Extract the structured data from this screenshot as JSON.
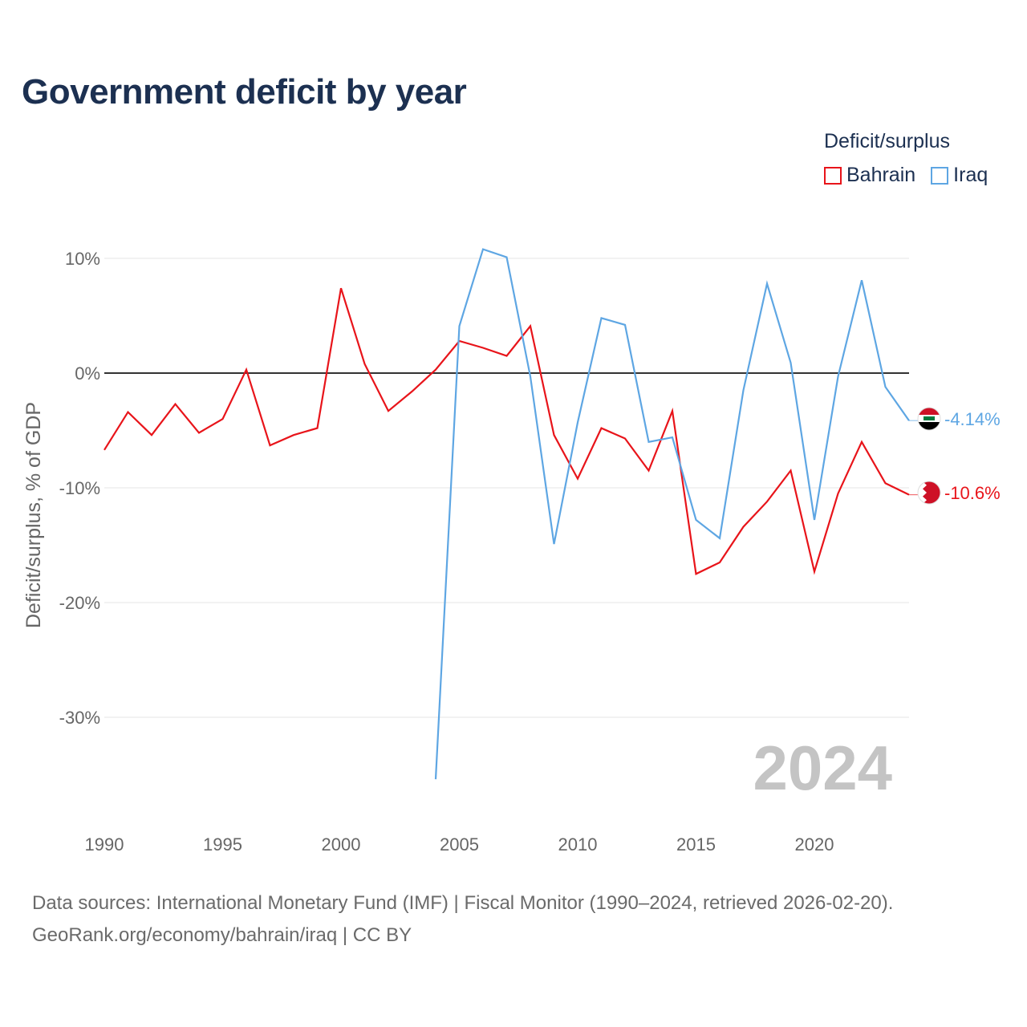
{
  "title": "Government deficit by year",
  "legend": {
    "title": "Deficit/surplus",
    "items": [
      {
        "label": "Bahrain",
        "color": "#e8141a"
      },
      {
        "label": "Iraq",
        "color": "#5ea6e3"
      }
    ]
  },
  "year_watermark": "2024",
  "end_labels": {
    "bahrain": "-10.6%",
    "iraq": "-4.14%"
  },
  "footer": {
    "line1": "Data sources: International Monetary Fund (IMF) | Fiscal Monitor (1990–2024, retrieved 2026-02-20).",
    "line2": "GeoRank.org/economy/bahrain/iraq | CC BY"
  },
  "chart_data": {
    "type": "line",
    "title": "Government deficit by year",
    "xlabel": "",
    "ylabel": "Deficit/surplus, % of GDP",
    "xlim": [
      1990,
      2024
    ],
    "ylim": [
      -38,
      12
    ],
    "x_ticks": [
      1990,
      1995,
      2000,
      2005,
      2010,
      2015,
      2020
    ],
    "x_tick_labels": [
      "1990",
      "1995",
      "2000",
      "2005",
      "2010",
      "2015",
      "2020"
    ],
    "y_ticks": [
      10,
      0,
      -10,
      -20,
      -30
    ],
    "y_tick_labels": [
      "10%",
      "0%",
      "-10%",
      "-20%",
      "-30%"
    ],
    "grid": true,
    "series": [
      {
        "name": "Bahrain",
        "color": "#e8141a",
        "x": [
          1990,
          1991,
          1992,
          1993,
          1994,
          1995,
          1996,
          1997,
          1998,
          1999,
          2000,
          2001,
          2002,
          2003,
          2004,
          2005,
          2006,
          2007,
          2008,
          2009,
          2010,
          2011,
          2012,
          2013,
          2014,
          2015,
          2016,
          2017,
          2018,
          2019,
          2020,
          2021,
          2022,
          2023,
          2024
        ],
        "values": [
          -6.7,
          -3.4,
          -5.4,
          -2.7,
          -5.2,
          -4.0,
          0.3,
          -6.3,
          -5.4,
          -4.8,
          7.4,
          0.8,
          -3.3,
          -1.6,
          0.3,
          2.8,
          2.2,
          1.5,
          4.1,
          -5.4,
          -9.2,
          -4.8,
          -5.7,
          -8.5,
          -3.3,
          -17.5,
          -16.5,
          -13.4,
          -11.2,
          -8.5,
          -17.3,
          -10.5,
          -6.0,
          -9.6,
          -10.6
        ]
      },
      {
        "name": "Iraq",
        "color": "#5ea6e3",
        "x": [
          2004,
          2005,
          2006,
          2007,
          2008,
          2009,
          2010,
          2011,
          2012,
          2013,
          2014,
          2015,
          2016,
          2017,
          2018,
          2019,
          2020,
          2021,
          2022,
          2023,
          2024
        ],
        "values": [
          -35.4,
          4.1,
          10.8,
          10.1,
          -0.3,
          -14.9,
          -4.3,
          4.8,
          4.2,
          -6.0,
          -5.6,
          -12.8,
          -14.4,
          -1.5,
          7.8,
          0.9,
          -12.8,
          -0.3,
          8.1,
          -1.2,
          -4.14
        ]
      }
    ]
  }
}
